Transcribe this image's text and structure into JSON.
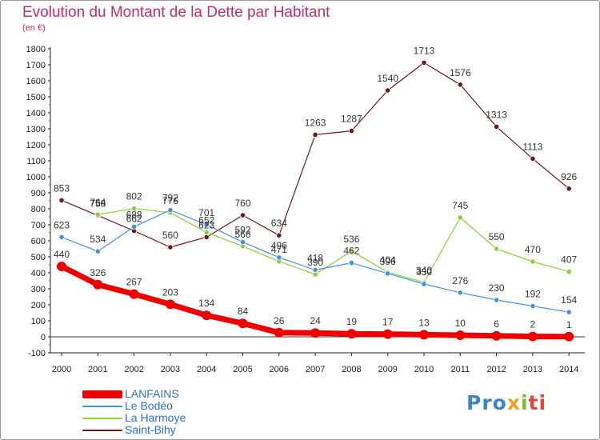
{
  "title": "Evolution du Montant de la Dette par Habitant",
  "subtitle": "(en €)",
  "logo": {
    "part1": "Pro",
    "part2": "x",
    "part3": "i",
    "part4": "ti"
  },
  "chart_data": {
    "type": "line",
    "title": "Evolution du Montant de la Dette par Habitant",
    "ylabel": "(en €)",
    "xlabel": "",
    "x": [
      "2000",
      "2001",
      "2002",
      "2003",
      "2004",
      "2005",
      "2006",
      "2007",
      "2008",
      "2009",
      "2010",
      "2011",
      "2012",
      "2013",
      "2014"
    ],
    "ylim": [
      -100,
      1800
    ],
    "yticks": [
      -100,
      0,
      100,
      200,
      300,
      400,
      500,
      600,
      700,
      800,
      900,
      1000,
      1100,
      1200,
      1300,
      1400,
      1500,
      1600,
      1700,
      1800
    ],
    "grid": false,
    "legend": "bottom-left",
    "series": [
      {
        "name": "LANFAINS",
        "color": "#ee0000",
        "values": [
          440,
          326,
          267,
          203,
          134,
          84,
          26,
          24,
          19,
          17,
          13,
          10,
          6,
          2,
          1
        ]
      },
      {
        "name": "Le Bodéo",
        "color": "#4a90d9",
        "values": [
          623,
          534,
          688,
          792,
          701,
          592,
          496,
          418,
          462,
          396,
          330,
          276,
          230,
          192,
          154
        ]
      },
      {
        "name": "La Harmoye",
        "color": "#8ccf40",
        "values": [
          null,
          764,
          802,
          776,
          652,
          566,
          471,
          390,
          536,
          404,
          340,
          745,
          550,
          470,
          407
        ]
      },
      {
        "name": "Saint-Bihy",
        "color": "#6b1a1a",
        "values": [
          853,
          758,
          662,
          560,
          623,
          760,
          634,
          1263,
          1287,
          1540,
          1713,
          1576,
          1313,
          1113,
          926
        ]
      }
    ]
  }
}
